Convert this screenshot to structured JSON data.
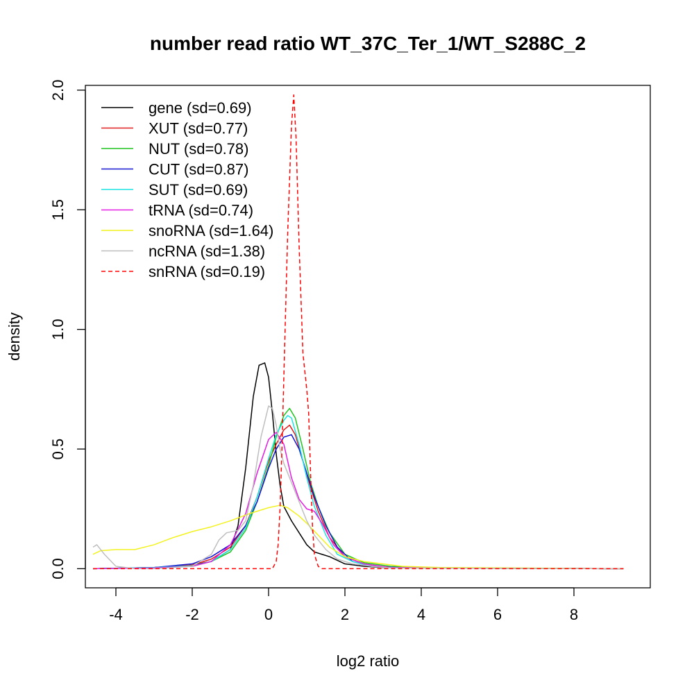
{
  "chart_data": {
    "type": "line",
    "title": "number read ratio WT_37C_Ter_1/WT_S288C_2",
    "xlabel": "log2 ratio",
    "ylabel": "density",
    "xlim": [
      -4.8,
      10.0
    ],
    "ylim": [
      -0.08,
      2.02
    ],
    "x_ticks": [
      -4,
      -2,
      0,
      2,
      4,
      6,
      8
    ],
    "x_tick_labels": [
      "-4",
      "-2",
      "0",
      "2",
      "4",
      "6",
      "8"
    ],
    "y_ticks": [
      0.0,
      0.5,
      1.0,
      1.5,
      2.0
    ],
    "y_tick_labels": [
      "0.0",
      "0.5",
      "1.0",
      "1.5",
      "2.0"
    ],
    "grid": false,
    "legend_position": "top-left",
    "series": [
      {
        "name": "gene (sd=0.69)",
        "color": "#000000",
        "dash": "solid",
        "x": [
          -4.6,
          -3,
          -2,
          -1.5,
          -1,
          -0.8,
          -0.6,
          -0.4,
          -0.25,
          -0.1,
          0.0,
          0.1,
          0.2,
          0.3,
          0.4,
          0.6,
          0.8,
          1.0,
          1.2,
          1.4,
          1.6,
          2.0,
          2.5,
          3,
          5,
          9.3
        ],
        "y": [
          0.0,
          0.005,
          0.015,
          0.03,
          0.08,
          0.18,
          0.42,
          0.72,
          0.85,
          0.86,
          0.8,
          0.65,
          0.48,
          0.35,
          0.26,
          0.2,
          0.15,
          0.1,
          0.07,
          0.06,
          0.05,
          0.02,
          0.01,
          0.005,
          0.002,
          0.0
        ]
      },
      {
        "name": "XUT (sd=0.77)",
        "color": "#DF1A1A",
        "dash": "solid",
        "x": [
          -4.6,
          -3,
          -2,
          -1.5,
          -1,
          -0.6,
          -0.3,
          0,
          0.2,
          0.4,
          0.55,
          0.7,
          0.9,
          1.1,
          1.3,
          1.6,
          2.0,
          2.5,
          3.0,
          4.0,
          9.3
        ],
        "y": [
          0.0,
          0.005,
          0.015,
          0.04,
          0.09,
          0.18,
          0.3,
          0.45,
          0.52,
          0.58,
          0.6,
          0.56,
          0.45,
          0.34,
          0.24,
          0.13,
          0.05,
          0.02,
          0.008,
          0.003,
          0.0
        ]
      },
      {
        "name": "NUT (sd=0.78)",
        "color": "#1FC41F",
        "dash": "solid",
        "x": [
          -4.6,
          -3,
          -2,
          -1.5,
          -1,
          -0.6,
          -0.3,
          0,
          0.2,
          0.4,
          0.55,
          0.7,
          0.9,
          1.1,
          1.3,
          1.6,
          2.0,
          2.5,
          3.2,
          4.0,
          9.3
        ],
        "y": [
          0.0,
          0.005,
          0.01,
          0.03,
          0.07,
          0.16,
          0.28,
          0.43,
          0.55,
          0.64,
          0.67,
          0.63,
          0.5,
          0.36,
          0.26,
          0.15,
          0.06,
          0.025,
          0.01,
          0.003,
          0.0
        ]
      },
      {
        "name": "CUT (sd=0.87)",
        "color": "#1212D0",
        "dash": "solid",
        "x": [
          -4.6,
          -3,
          -2,
          -1.5,
          -1,
          -0.6,
          -0.3,
          0,
          0.2,
          0.4,
          0.6,
          0.8,
          1.0,
          1.2,
          1.5,
          1.8,
          2.2,
          2.7,
          3.5,
          9.3
        ],
        "y": [
          0.0,
          0.005,
          0.02,
          0.05,
          0.1,
          0.18,
          0.28,
          0.42,
          0.5,
          0.55,
          0.56,
          0.5,
          0.4,
          0.3,
          0.18,
          0.09,
          0.03,
          0.01,
          0.004,
          0.0
        ]
      },
      {
        "name": "SUT (sd=0.69)",
        "color": "#1CE3E3",
        "dash": "solid",
        "x": [
          -4.6,
          -3,
          -2,
          -1.5,
          -1,
          -0.6,
          -0.3,
          0,
          0.2,
          0.4,
          0.5,
          0.6,
          0.8,
          1.0,
          1.2,
          1.5,
          1.8,
          2.2,
          2.7,
          3.5,
          9.3
        ],
        "y": [
          0.0,
          0.005,
          0.012,
          0.03,
          0.08,
          0.17,
          0.3,
          0.46,
          0.56,
          0.62,
          0.64,
          0.63,
          0.52,
          0.38,
          0.26,
          0.14,
          0.06,
          0.03,
          0.01,
          0.003,
          0.0
        ]
      },
      {
        "name": "tRNA (sd=0.74)",
        "color": "#E21CE2",
        "dash": "solid",
        "x": [
          -4.6,
          -3,
          -2,
          -1.5,
          -1,
          -0.6,
          -0.3,
          0,
          0.2,
          0.4,
          0.6,
          0.8,
          1.0,
          1.2,
          1.4,
          1.7,
          2.0,
          2.5,
          3.2,
          9.3
        ],
        "y": [
          0.0,
          0.003,
          0.01,
          0.03,
          0.1,
          0.23,
          0.4,
          0.54,
          0.57,
          0.52,
          0.38,
          0.29,
          0.25,
          0.24,
          0.19,
          0.1,
          0.05,
          0.02,
          0.005,
          0.0
        ]
      },
      {
        "name": "snoRNA (sd=1.64)",
        "color": "#F2F21E",
        "dash": "solid",
        "x": [
          -4.6,
          -4.4,
          -4.0,
          -3.5,
          -3,
          -2.5,
          -2,
          -1.5,
          -1,
          -0.5,
          0,
          0.3,
          0.5,
          0.8,
          1.0,
          1.3,
          1.6,
          2.0,
          2.5,
          3.0,
          3.5,
          4.5,
          9.3
        ],
        "y": [
          0.06,
          0.075,
          0.08,
          0.08,
          0.1,
          0.13,
          0.155,
          0.175,
          0.2,
          0.23,
          0.255,
          0.265,
          0.255,
          0.22,
          0.19,
          0.14,
          0.09,
          0.05,
          0.03,
          0.02,
          0.01,
          0.005,
          0.0
        ]
      },
      {
        "name": "ncRNA (sd=1.38)",
        "color": "#BEBEBE",
        "dash": "solid",
        "x": [
          -4.6,
          -4.5,
          -4.3,
          -4.0,
          -3.5,
          -3,
          -2,
          -1.5,
          -1.3,
          -1.1,
          -0.8,
          -0.6,
          -0.4,
          -0.2,
          0,
          0.1,
          0.2,
          0.3,
          0.4,
          0.6,
          0.8,
          1.0,
          1.2,
          1.5,
          1.8,
          2.2,
          2.7,
          3.2,
          9.3
        ],
        "y": [
          0.09,
          0.1,
          0.06,
          0.01,
          0.0,
          0.0,
          0.01,
          0.06,
          0.12,
          0.15,
          0.16,
          0.2,
          0.35,
          0.55,
          0.68,
          0.67,
          0.6,
          0.5,
          0.44,
          0.36,
          0.28,
          0.2,
          0.14,
          0.08,
          0.04,
          0.02,
          0.01,
          0.003,
          0.0
        ]
      },
      {
        "name": "snRNA (sd=0.19)",
        "color": "#FF0000",
        "dash": "dashed",
        "x": [
          -4.6,
          0.1,
          0.2,
          0.25,
          0.3,
          0.35,
          0.4,
          0.5,
          0.6,
          0.66,
          0.72,
          0.8,
          0.9,
          1.0,
          1.05,
          1.1,
          1.15,
          1.2,
          1.3,
          1.4,
          9.3
        ],
        "y": [
          0.0,
          0.0,
          0.03,
          0.1,
          0.25,
          0.5,
          0.8,
          1.4,
          1.85,
          1.98,
          1.8,
          1.35,
          0.9,
          0.75,
          0.65,
          0.4,
          0.18,
          0.06,
          0.01,
          0.0,
          0.0
        ]
      }
    ]
  }
}
